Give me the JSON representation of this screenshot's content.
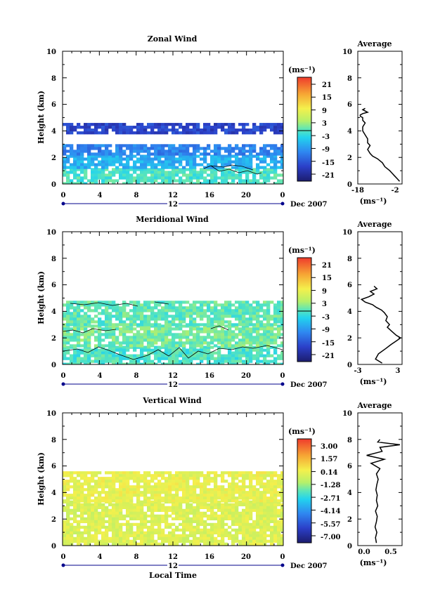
{
  "chart_data": [
    {
      "type": "heatmap",
      "title": "Zonal Wind",
      "xlabel": "",
      "ylabel": "Height (km)",
      "xlim": [
        0,
        24
      ],
      "ylim": [
        0,
        10
      ],
      "x_ticks": [
        "0",
        "4",
        "8",
        "12",
        "16",
        "20",
        "0"
      ],
      "y_ticks": [
        "0",
        "2",
        "4",
        "6",
        "8",
        "10"
      ],
      "date_label": "12",
      "date_right": "Dec 2007",
      "colorbar": {
        "unit": "(ms⁻¹)",
        "labels": [
          "21",
          "15",
          "9",
          "3",
          "-3",
          "-9",
          "-15",
          "-21"
        ],
        "range": [
          -24,
          24
        ]
      },
      "layers": [
        {
          "y": [
            0.0,
            1.2
          ],
          "value": -1,
          "description": "light cyan near ground"
        },
        {
          "y": [
            1.2,
            2.2
          ],
          "value": -7,
          "description": "medium blue"
        },
        {
          "y": [
            2.2,
            3.0
          ],
          "value": -11,
          "description": "blue"
        },
        {
          "y": [
            3.8,
            4.6
          ],
          "value": -17,
          "description": "dark blue, early hours"
        }
      ],
      "profile": {
        "title": "Average",
        "xlabel": "(ms⁻¹)",
        "xlim": [
          -18,
          0
        ],
        "x_ticks": [
          "-18",
          "-2"
        ],
        "y_ticks": [
          "0",
          "2",
          "4",
          "6",
          "8",
          "10"
        ],
        "x": [
          -1,
          -2,
          -3,
          -4,
          -5,
          -7,
          -8,
          -10,
          -12,
          -13,
          -14,
          -13,
          -14,
          -14,
          -15,
          -16,
          -16,
          -15,
          -16,
          -16,
          -17,
          -17,
          -16,
          -14,
          -16,
          -15
        ],
        "y": [
          0.2,
          0.4,
          0.6,
          0.8,
          1.0,
          1.3,
          1.6,
          1.9,
          2.1,
          2.3,
          2.6,
          2.9,
          3.1,
          3.4,
          3.7,
          4.0,
          4.3,
          4.6,
          4.8,
          5.0,
          5.1,
          5.2,
          5.3,
          5.4,
          5.6,
          5.7
        ]
      }
    },
    {
      "type": "heatmap",
      "title": "Meridional Wind",
      "xlabel": "",
      "ylabel": "Height (km)",
      "xlim": [
        0,
        24
      ],
      "ylim": [
        0,
        10
      ],
      "x_ticks": [
        "0",
        "4",
        "8",
        "12",
        "16",
        "20",
        "0"
      ],
      "y_ticks": [
        "0",
        "2",
        "4",
        "6",
        "8",
        "10"
      ],
      "date_label": "12",
      "date_right": "Dec 2007",
      "colorbar": {
        "unit": "(ms⁻¹)",
        "labels": [
          "21",
          "15",
          "9",
          "3",
          "-3",
          "-9",
          "-15",
          "-21"
        ],
        "range": [
          -24,
          24
        ]
      },
      "layers": [
        {
          "y": [
            0.0,
            1.4
          ],
          "value": -1,
          "description": "cyan near ground"
        },
        {
          "y": [
            1.4,
            3.0
          ],
          "value": 1,
          "description": "aquamarine"
        },
        {
          "y": [
            3.0,
            4.8
          ],
          "value": 0,
          "description": "cyan-green"
        }
      ],
      "profile": {
        "title": "Average",
        "xlabel": "(ms⁻¹)",
        "xlim": [
          -3,
          3
        ],
        "x_ticks": [
          "-3",
          "3"
        ],
        "y_ticks": [
          "0",
          "2",
          "4",
          "6",
          "8",
          "10"
        ],
        "x": [
          0.3,
          -0.6,
          -0.2,
          0.8,
          1.5,
          2.3,
          2.8,
          2.2,
          1.6,
          1.0,
          1.3,
          0.8,
          1.0,
          0.6,
          0.2,
          -0.5,
          -1.0,
          -2.0,
          -2.5,
          -1.5,
          -0.8,
          -1.3,
          -0.4,
          -0.8
        ],
        "y": [
          0.1,
          0.4,
          0.8,
          1.2,
          1.5,
          1.8,
          2.0,
          2.2,
          2.5,
          2.8,
          3.0,
          3.3,
          3.6,
          3.9,
          4.1,
          4.3,
          4.5,
          4.7,
          4.9,
          5.1,
          5.3,
          5.5,
          5.7,
          5.9
        ]
      }
    },
    {
      "type": "heatmap",
      "title": "Vertical Wind",
      "xlabel": "Local Time",
      "ylabel": "Height (km)",
      "xlim": [
        0,
        24
      ],
      "ylim": [
        0,
        10
      ],
      "x_ticks": [
        "0",
        "4",
        "8",
        "12",
        "16",
        "20",
        "0"
      ],
      "y_ticks": [
        "0",
        "2",
        "4",
        "6",
        "8",
        "10"
      ],
      "date_label": "12",
      "date_right": "Dec 2007",
      "colorbar": {
        "unit": "(ms⁻¹)",
        "labels": [
          "3.00",
          "1.57",
          "0.14",
          "-1.28",
          "-2.71",
          "-4.14",
          "-5.57",
          "-7.00"
        ],
        "range": [
          -8.5,
          4.5
        ]
      },
      "layers": [
        {
          "y": [
            0.0,
            3.4
          ],
          "value": 0.0,
          "description": "yellow-green with yellow patches"
        },
        {
          "y": [
            3.4,
            5.6
          ],
          "value": 0.3,
          "description": "pale yellow-green"
        }
      ],
      "profile": {
        "title": "Average",
        "xlabel": "(ms⁻¹)",
        "xlim": [
          -0.4,
          0.6
        ],
        "x_ticks": [
          "0.0",
          "0.5"
        ],
        "y_ticks": [
          "0",
          "2",
          "4",
          "6",
          "8",
          "10"
        ],
        "x": [
          0.02,
          0.0,
          0.03,
          -0.01,
          0.02,
          0.04,
          0.0,
          0.05,
          0.02,
          0.04,
          0.01,
          0.03,
          0.06,
          0.02,
          0.1,
          -0.1,
          0.2,
          -0.2,
          0.15,
          0.1,
          0.55,
          0.05,
          0.1
        ],
        "y": [
          0.2,
          0.6,
          1.0,
          1.4,
          1.8,
          2.2,
          2.6,
          3.0,
          3.4,
          3.8,
          4.2,
          4.6,
          5.0,
          5.4,
          5.8,
          6.2,
          6.5,
          6.8,
          7.1,
          7.4,
          7.6,
          7.8,
          8.0
        ]
      }
    }
  ]
}
